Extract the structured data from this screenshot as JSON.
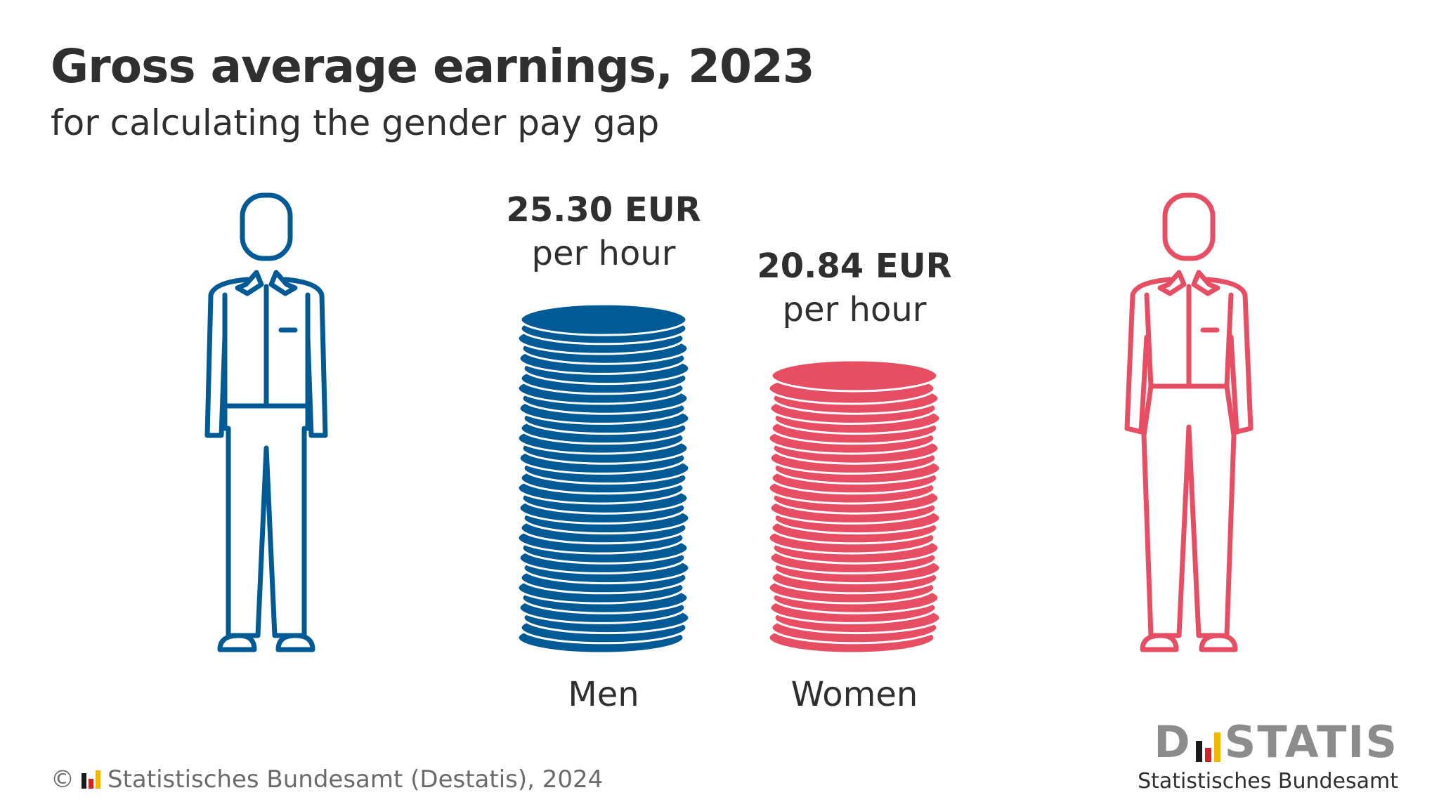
{
  "title": "Gross average earnings, 2023",
  "subtitle": "for calculating the gender pay gap",
  "chart_data": {
    "type": "bar",
    "categories": [
      "Men",
      "Women"
    ],
    "values": [
      25.3,
      20.84
    ],
    "value_labels": [
      "25.30 EUR",
      "20.84 EUR"
    ],
    "unit_label": "per hour",
    "colors": [
      "#005a96",
      "#e84e63"
    ]
  },
  "footer": {
    "copyright": "©",
    "text": "Statistisches Bundesamt (Destatis), 2024"
  },
  "brand": {
    "logo_left": "D",
    "logo_right": "STATIS",
    "tagline": "Statistisches Bundesamt"
  },
  "colors": {
    "men": "#005a96",
    "women": "#e84e63",
    "logo_black": "#1a1a1a",
    "logo_red": "#d2232a",
    "logo_gold": "#f2b705"
  },
  "icons": [
    "man-figure-icon",
    "woman-figure-icon",
    "coin-stack-icon",
    "destatis-logo-icon"
  ]
}
